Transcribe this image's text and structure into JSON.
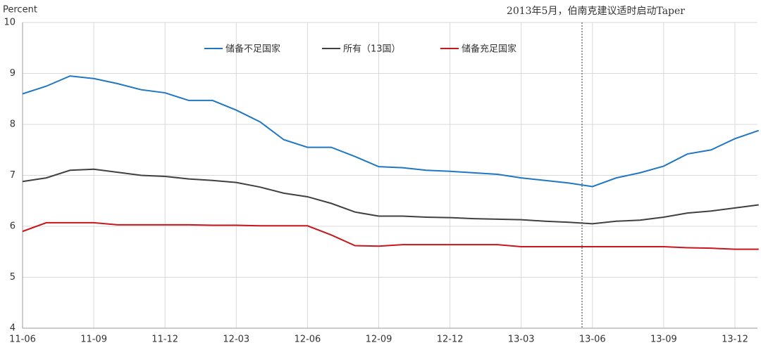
{
  "chart_data": {
    "type": "line",
    "y_label": "Percent",
    "annotation": "2013年5月，伯南克建议适时启动Taper",
    "categories": [
      "11-06",
      null,
      null,
      "11-09",
      null,
      null,
      "11-12",
      null,
      null,
      "12-03",
      null,
      null,
      "12-06",
      null,
      null,
      "12-09",
      null,
      null,
      "12-12",
      null,
      null,
      "13-03",
      null,
      null,
      "13-06",
      null,
      null,
      "13-09",
      null,
      null,
      "13-12",
      null
    ],
    "series": [
      {
        "name": "储备不足国家",
        "color": "#1f77c4",
        "values": [
          8.6,
          8.75,
          8.95,
          8.9,
          8.8,
          8.68,
          8.62,
          8.47,
          8.47,
          8.28,
          8.05,
          7.7,
          7.55,
          7.55,
          7.37,
          7.17,
          7.15,
          7.1,
          7.08,
          7.05,
          7.02,
          6.95,
          6.9,
          6.85,
          6.78,
          6.95,
          7.05,
          7.18,
          7.42,
          7.5,
          7.72,
          7.88
        ]
      },
      {
        "name": "所有（13国）",
        "color": "#404040",
        "values": [
          6.88,
          6.95,
          7.1,
          7.12,
          7.06,
          7.0,
          6.98,
          6.93,
          6.9,
          6.86,
          6.77,
          6.65,
          6.58,
          6.45,
          6.28,
          6.2,
          6.2,
          6.18,
          6.17,
          6.15,
          6.14,
          6.13,
          6.1,
          6.08,
          6.05,
          6.1,
          6.12,
          6.18,
          6.26,
          6.3,
          6.36,
          6.42
        ]
      },
      {
        "name": "储备充足国家",
        "color": "#c8161d",
        "values": [
          5.9,
          6.07,
          6.07,
          6.07,
          6.03,
          6.03,
          6.03,
          6.03,
          6.02,
          6.02,
          6.01,
          6.01,
          6.01,
          5.83,
          5.62,
          5.61,
          5.64,
          5.64,
          5.64,
          5.64,
          5.64,
          5.6,
          5.6,
          5.6,
          5.6,
          5.6,
          5.6,
          5.6,
          5.58,
          5.57,
          5.55,
          5.55
        ]
      }
    ],
    "ylim": [
      4,
      10
    ],
    "yticks": [
      4,
      5,
      6,
      7,
      8,
      9,
      10
    ],
    "grid": true
  }
}
